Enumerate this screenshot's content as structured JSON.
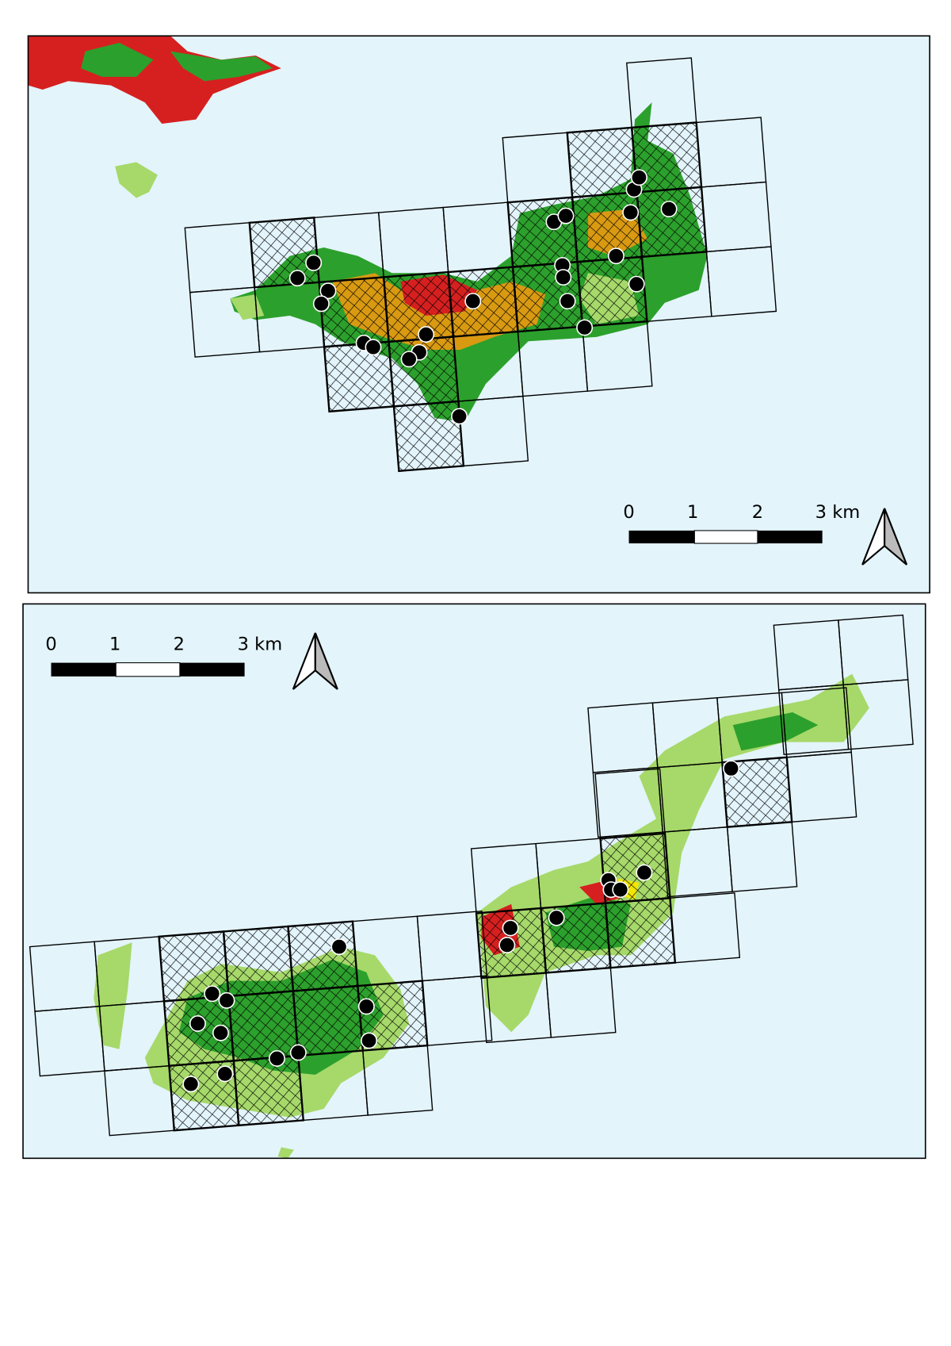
{
  "maps": [
    {
      "scale_labels": [
        "0",
        "1",
        "2",
        "3 km"
      ]
    },
    {
      "scale_labels": [
        "0",
        "1",
        "2",
        "3 km"
      ]
    }
  ]
}
